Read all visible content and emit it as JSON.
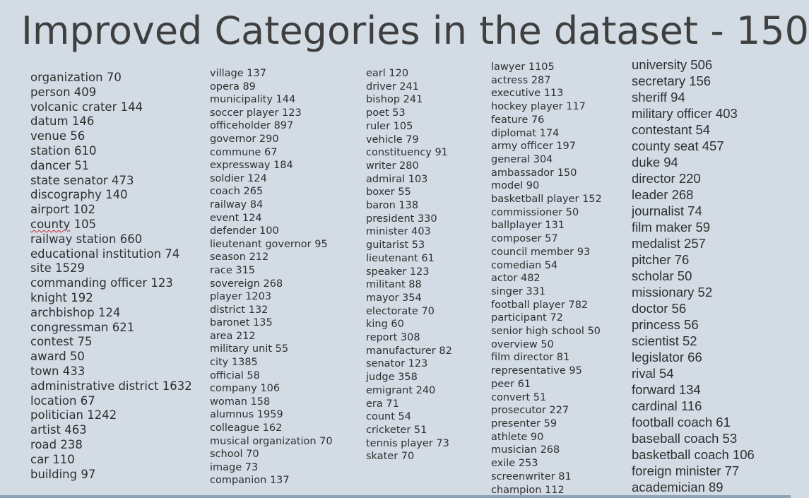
{
  "title": "Improved Categories in the dataset - 150",
  "columns": [
    [
      "organization 70",
      "person 409",
      "volcanic crater 144",
      "datum 146",
      "venue 56",
      "station 610",
      "dancer 51",
      "state senator 473",
      "discography 140",
      "airport 102",
      "county 105",
      "railway station 660",
      "educational institution 74",
      "site 1529",
      "commanding officer 123",
      "knight 192",
      "archbishop 124",
      "congressman 621",
      "contest 75",
      "award 50",
      "town 433",
      "administrative district 1632",
      "location 67",
      "politician 1242",
      "artist 463",
      "road 238",
      "car 110",
      "building 97"
    ],
    [
      "village 137",
      "opera 89",
      "municipality 144",
      "soccer player 123",
      "officeholder 897",
      "governor 290",
      "commune 67",
      "expressway 184",
      "soldier 124",
      "coach 265",
      "railway 84",
      "event 124",
      "defender 100",
      "lieutenant governor 95",
      "season 212",
      "race 315",
      "sovereign 268",
      "player 1203",
      "district 132",
      "baronet 135",
      "area 212",
      "military unit 55",
      "city 1385",
      "official 58",
      "company 106",
      "woman 158",
      "alumnus 1959",
      "colleague 162",
      "musical organization 70",
      "school 70",
      "image 73",
      "companion 137"
    ],
    [
      "earl 120",
      "driver 241",
      "bishop 241",
      "poet 53",
      "ruler 105",
      "vehicle 79",
      "constituency 91",
      "writer 280",
      "admiral 103",
      "boxer 55",
      "baron 138",
      "president 330",
      "minister 403",
      "guitarist 53",
      "lieutenant 61",
      "speaker 123",
      "militant 88",
      "mayor 354",
      "electorate 70",
      "king 60",
      "report 308",
      "manufacturer 82",
      "senator 123",
      "judge 358",
      "emigrant 240",
      "era 71",
      "count 54",
      "cricketer 51",
      "tennis player 73",
      "skater 70"
    ],
    [
      "lawyer 1105",
      "actress 287",
      "executive 113",
      "hockey player 117",
      "feature 76",
      "diplomat 174",
      "army officer 197",
      "general 304",
      "ambassador 150",
      "model 90",
      "basketball player 152",
      "commissioner 50",
      "ballplayer 131",
      "composer 57",
      "council member 93",
      "comedian 54",
      "actor 482",
      "singer 331",
      "football player 782",
      "participant 72",
      "senior high school 50",
      "overview 50",
      "film director 81",
      "representative 95",
      "peer 61",
      "convert 51",
      "prosecutor 227",
      "presenter 59",
      "athlete 90",
      "musician 268",
      "exile 253",
      "screenwriter 81",
      "champion 112"
    ],
    [
      "university 506",
      "secretary 156",
      "sheriff 94",
      "military officer 403",
      "contestant 54",
      "county seat 457",
      "duke 94",
      "director 220",
      "leader 268",
      "journalist 74",
      "film maker 59",
      "medalist 257",
      "pitcher 76",
      "scholar 50",
      "missionary 52",
      "doctor 56",
      "princess 56",
      "scientist 52",
      "legislator 66",
      "rival 54",
      "forward 134",
      "cardinal 116",
      "football coach 61",
      "baseball coach 53",
      "basketball coach 106",
      "foreign minister 77",
      "academician 89"
    ]
  ]
}
